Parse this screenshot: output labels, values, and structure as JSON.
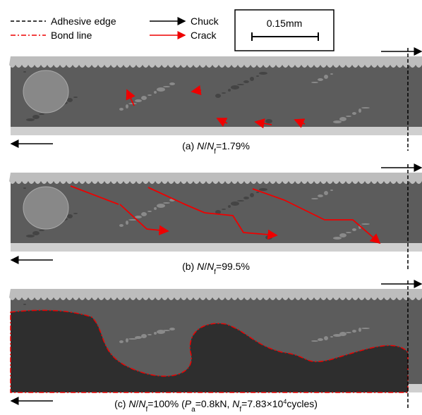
{
  "legend": {
    "adhesive_edge": "Adhesive edge",
    "bond_line": "Bond line",
    "chuck": "Chuck",
    "crack": "Crack"
  },
  "scale_bar": "0.15mm",
  "panels": [
    {
      "caption": [
        {
          "text": "(a) ",
          "style": "normal"
        },
        {
          "text": "N",
          "style": "italic"
        },
        {
          "text": "/",
          "style": "normal"
        },
        {
          "text": "N",
          "style": "italic"
        },
        {
          "text": "f",
          "style": "sub"
        },
        {
          "text": "=1.79%",
          "style": "normal"
        }
      ]
    },
    {
      "caption": [
        {
          "text": "(b) ",
          "style": "normal"
        },
        {
          "text": "N",
          "style": "italic"
        },
        {
          "text": "/",
          "style": "normal"
        },
        {
          "text": "N",
          "style": "italic"
        },
        {
          "text": "f",
          "style": "sub"
        },
        {
          "text": "=99.5%",
          "style": "normal"
        }
      ]
    },
    {
      "caption": [
        {
          "text": "(c) ",
          "style": "normal"
        },
        {
          "text": "N",
          "style": "italic"
        },
        {
          "text": "/",
          "style": "normal"
        },
        {
          "text": "N",
          "style": "italic"
        },
        {
          "text": "f",
          "style": "sub"
        },
        {
          "text": "=100% (",
          "style": "normal"
        },
        {
          "text": "P",
          "style": "italic"
        },
        {
          "text": "a",
          "style": "sub"
        },
        {
          "text": "=0.8kN, ",
          "style": "normal"
        },
        {
          "text": "N",
          "style": "italic"
        },
        {
          "text": "f",
          "style": "sub"
        },
        {
          "text": "=7.83×10",
          "style": "normal"
        },
        {
          "text": "4",
          "style": "sup"
        },
        {
          "text": "cycles)",
          "style": "normal"
        }
      ]
    }
  ]
}
